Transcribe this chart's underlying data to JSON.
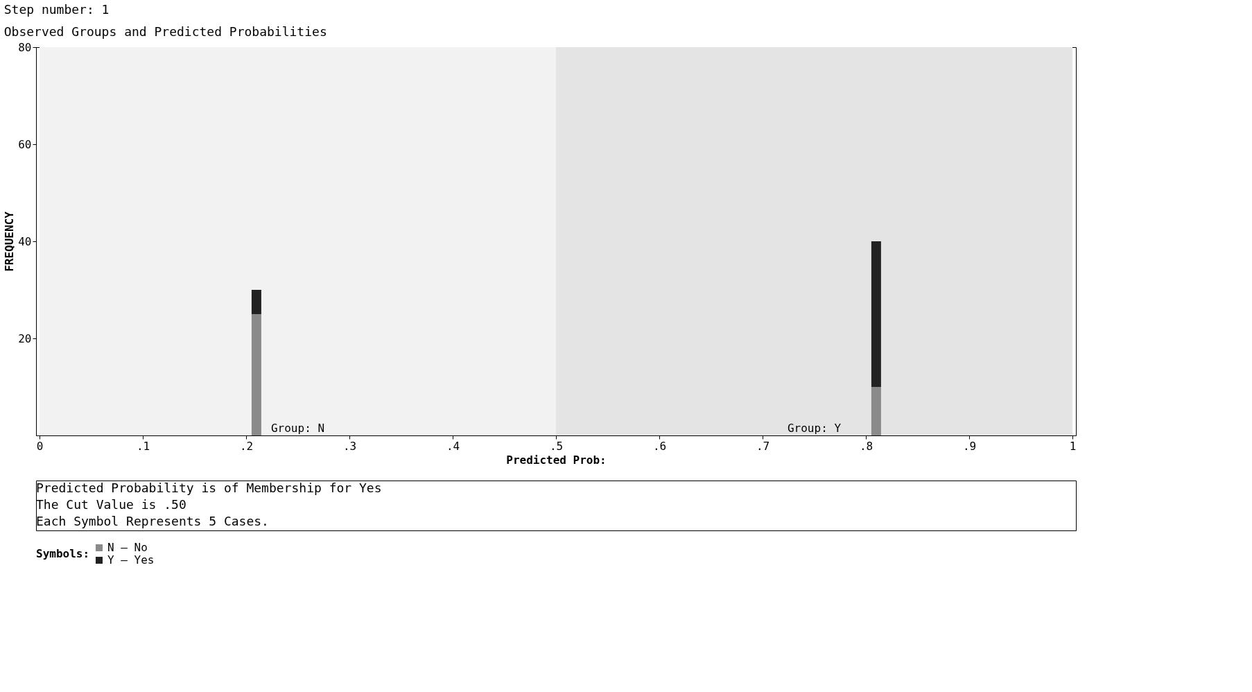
{
  "chart_data": {
    "type": "bar",
    "stacked": true,
    "subtitle": "Observed Groups and Predicted Probabilities",
    "title": "Step number: 1",
    "xlabel": "Predicted Prob:",
    "ylabel": "FREQUENCY",
    "legend_title": "Symbols:",
    "legend": "bottom left",
    "x": [
      0.21,
      0.81
    ],
    "series": [
      {
        "name": "N – No",
        "color": "#8a8a8a",
        "values": [
          25,
          10
        ]
      },
      {
        "name": "Y – Yes",
        "color": "#222222",
        "values": [
          5,
          30
        ]
      }
    ],
    "xlim": [
      0,
      1
    ],
    "xticks": [
      0,
      {
        "value": 0.1,
        "label": ".1"
      },
      {
        "value": 0.2,
        "label": ".2"
      },
      {
        "value": 0.3,
        "label": ".3"
      },
      {
        "value": 0.4,
        "label": ".4"
      },
      {
        "value": 0.5,
        "label": ".5"
      },
      {
        "value": 0.6,
        "label": ".6"
      },
      {
        "value": 0.7,
        "label": ".7"
      },
      {
        "value": 0.8,
        "label": ".8"
      },
      {
        "value": 0.9,
        "label": ".9"
      },
      1
    ],
    "ylim": [
      0,
      80
    ],
    "yticks": [
      20,
      40,
      60,
      80
    ],
    "grid": false,
    "bands": [
      {
        "axis": "x",
        "from": 0,
        "to": 0.5,
        "label": "Group: N",
        "color": "#f2f2f2"
      },
      {
        "axis": "x",
        "from": 0.5,
        "to": 1,
        "label": "Group: Y",
        "color": "#e4e4e4"
      }
    ],
    "annotations": [
      "Predicted Probability is of Membership for Yes",
      "The Cut Value is .50",
      "Each Symbol Represents 5 Cases."
    ]
  }
}
